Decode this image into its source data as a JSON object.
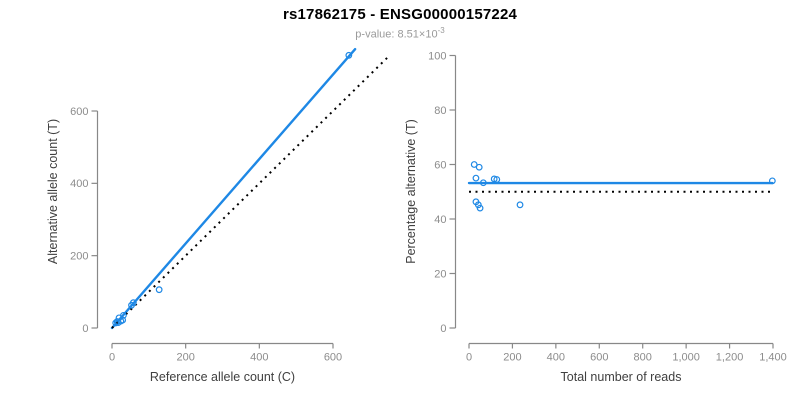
{
  "header": {
    "title": "rs17862175 - ENSG00000157224",
    "subtitle_text": "p-value: 8.51×10",
    "subtitle_exponent": "-3"
  },
  "colors": {
    "accent_blue": "#1E88E5",
    "dotted_black": "#000000",
    "axis_gray": "#888888",
    "tick_label_gray": "#8c8c8c",
    "axis_title_gray": "#404040"
  },
  "chart_data": [
    {
      "type": "scatter",
      "name": "allele-counts",
      "xlabel": "Reference allele count (C)",
      "ylabel": "Alternative allele count (T)",
      "xticks": [
        0,
        200,
        400,
        600
      ],
      "xtick_labels": [
        "0",
        "200",
        "400",
        "600"
      ],
      "yticks": [
        0,
        200,
        400,
        600
      ],
      "ytick_labels": [
        "0",
        "200",
        "400",
        "600"
      ],
      "xlim": [
        0,
        660
      ],
      "ylim": [
        0,
        770
      ],
      "points": [
        [
          10,
          14
        ],
        [
          19,
          28
        ],
        [
          14,
          18
        ],
        [
          31,
          35
        ],
        [
          53,
          63
        ],
        [
          58,
          70
        ],
        [
          17,
          15
        ],
        [
          24,
          19
        ],
        [
          29,
          22
        ],
        [
          128,
          106
        ],
        [
          643,
          754
        ]
      ],
      "lines": [
        {
          "name": "fitted-ratio-line",
          "style": "solid",
          "color": "blue",
          "from": [
            0,
            0
          ],
          "to": [
            660,
            771
          ]
        },
        {
          "name": "identity-line",
          "style": "dotted",
          "color": "black",
          "from": [
            0,
            0
          ],
          "to": [
            755,
            755
          ]
        }
      ],
      "legend": "none",
      "grid": false
    },
    {
      "type": "scatter",
      "name": "percentage-alternative",
      "xlabel": "Total number of reads",
      "ylabel": "Percentage alternative (T)",
      "xticks": [
        0,
        200,
        400,
        600,
        800,
        1000,
        1200,
        1400
      ],
      "xtick_labels": [
        "0",
        "200",
        "400",
        "600",
        "800",
        "1,000",
        "1,200",
        "1,400"
      ],
      "yticks": [
        0,
        20,
        40,
        60,
        80,
        100
      ],
      "ytick_labels": [
        "0",
        "20",
        "40",
        "60",
        "80",
        "100"
      ],
      "xlim": [
        0,
        1400
      ],
      "ylim": [
        0,
        100
      ],
      "points": [
        [
          24,
          60
        ],
        [
          47,
          59
        ],
        [
          32,
          55
        ],
        [
          66,
          53.3
        ],
        [
          116,
          54.7
        ],
        [
          128,
          54.5
        ],
        [
          32,
          46.3
        ],
        [
          43,
          45.2
        ],
        [
          51,
          44
        ],
        [
          235,
          45.2
        ],
        [
          1397,
          54
        ]
      ],
      "lines": [
        {
          "name": "fitted-percentage-line",
          "style": "solid",
          "color": "blue",
          "from": [
            0,
            53.2
          ],
          "to": [
            1397,
            53.2
          ]
        },
        {
          "name": "expected-50-line",
          "style": "dotted",
          "color": "black",
          "from": [
            0,
            50
          ],
          "to": [
            1400,
            50
          ]
        }
      ],
      "legend": "none",
      "grid": false
    }
  ]
}
